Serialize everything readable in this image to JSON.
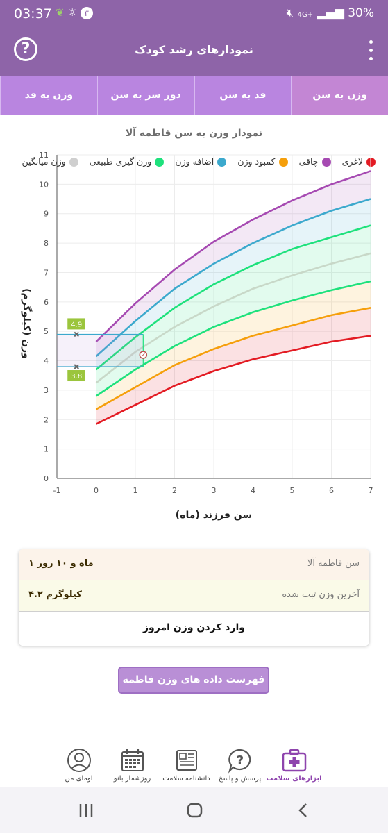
{
  "status_bar": {
    "time": "03:37",
    "notif_count": "٣",
    "network": "4G+",
    "battery": "30%"
  },
  "app_bar": {
    "title": "نمودارهای رشد کودک",
    "help_icon": "question-circle-icon",
    "menu_icon": "more-vert-icon"
  },
  "tabs": [
    {
      "label": "وزن به سن",
      "active": true
    },
    {
      "label": "قد به سن",
      "active": false
    },
    {
      "label": "دور سر به سن",
      "active": false
    },
    {
      "label": "وزن به قد",
      "active": false
    }
  ],
  "chart_title": "نمودار وزن به سن فاطمه آلا",
  "legend": [
    {
      "label": "لاغری",
      "color": "#e31b23"
    },
    {
      "label": "چاقی",
      "color": "#a64ab2"
    },
    {
      "label": "اضافه وزن",
      "color": "#3ca9cd"
    },
    {
      "label": "وزن گیری طبیعی",
      "color": "#1ee17c"
    },
    {
      "label": "کمبود وزن",
      "color": "#f59f0b"
    },
    {
      "label": "وزن میانگین",
      "color": "#cfcfcf"
    }
  ],
  "chart_data": {
    "type": "line",
    "xlabel": "سن فرزند (ماه)",
    "ylabel": "وزن (کیلوگرم)",
    "xlim": [
      -1,
      7
    ],
    "ylim": [
      0,
      11
    ],
    "x_ticks": [
      "-1",
      "0",
      "1",
      "2",
      "3",
      "4",
      "5",
      "6",
      "7"
    ],
    "y_ticks": [
      "0",
      "1",
      "2",
      "3",
      "4",
      "5",
      "6",
      "7",
      "8",
      "9",
      "10",
      "11"
    ],
    "grid": true,
    "x": [
      0,
      1,
      2,
      3,
      4,
      5,
      6,
      7
    ],
    "series": [
      {
        "name": "چاقی",
        "color": "#a64ab2",
        "values": [
          4.65,
          5.95,
          7.1,
          8.05,
          8.8,
          9.45,
          10.0,
          10.45
        ]
      },
      {
        "name": "اضافه وزن",
        "color": "#3ca9cd",
        "values": [
          4.15,
          5.35,
          6.45,
          7.3,
          8.0,
          8.6,
          9.1,
          9.5
        ]
      },
      {
        "name": "وزن گیری طبیعی",
        "color": "#1ee17c",
        "values": [
          3.7,
          4.8,
          5.8,
          6.6,
          7.25,
          7.8,
          8.2,
          8.6
        ]
      },
      {
        "name": "وزن میانگین",
        "color": "#c8d8c8",
        "values": [
          3.25,
          4.3,
          5.15,
          5.85,
          6.45,
          6.9,
          7.3,
          7.65
        ]
      },
      {
        "name": "کمبود وزن",
        "color": "#1ee17c",
        "values": [
          2.8,
          3.7,
          4.5,
          5.15,
          5.65,
          6.05,
          6.4,
          6.7
        ]
      },
      {
        "name": "کمبود وزن",
        "color": "#f59f0b",
        "values": [
          2.35,
          3.1,
          3.85,
          4.4,
          4.85,
          5.2,
          5.55,
          5.8
        ]
      },
      {
        "name": "لاغری",
        "color": "#e31b23",
        "values": [
          1.85,
          2.5,
          3.15,
          3.65,
          4.05,
          4.35,
          4.65,
          4.85
        ]
      }
    ],
    "range_marker": {
      "upper": 4.9,
      "lower": 3.8,
      "x": -0.5,
      "upper_label": "4.9",
      "lower_label": "3.8"
    },
    "current_point": {
      "x": 1.2,
      "y": 4.2
    }
  },
  "info_card": {
    "age_label": "سن فاطمه آلا",
    "age_value": "۱ ماه و ۱۰ روز",
    "weight_label": "آخرین وزن ثبت شده",
    "weight_value": "۴.۲ کیلوگرم",
    "enter_label": "وارد کردن وزن امروز"
  },
  "list_button": "فهرست داده های وزن فاطمه آلا",
  "bottom_nav": [
    {
      "label": "ابزارهای سلامت",
      "icon": "medical-kit-icon",
      "active": true
    },
    {
      "label": "پرسش و پاسخ",
      "icon": "question-bubble-icon",
      "active": false
    },
    {
      "label": "دانشنامه سلامت",
      "icon": "newspaper-icon",
      "active": false
    },
    {
      "label": "روزشمار بانو",
      "icon": "calendar-icon",
      "active": false
    },
    {
      "label": "اومای من",
      "icon": "user-avatar-icon",
      "active": false
    }
  ]
}
